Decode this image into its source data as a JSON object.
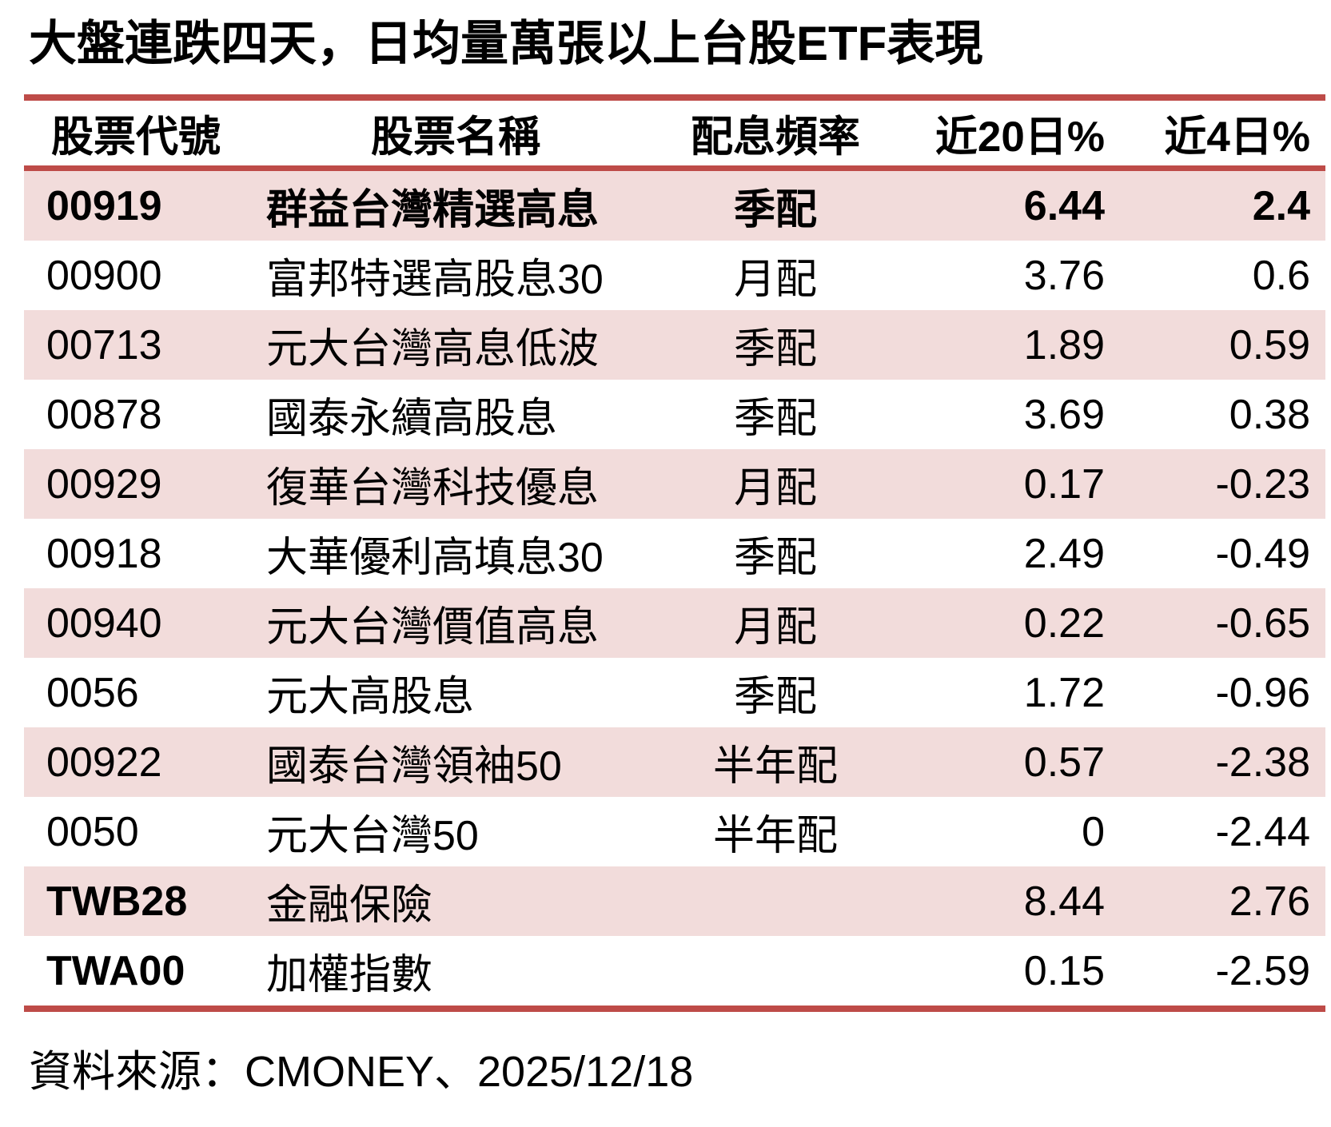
{
  "title": "大盤連跌四天，日均量萬張以上台股ETF表現",
  "accent_colors": {
    "rule_red": "#BE4B48",
    "zebra_pink": "#F2DCDB",
    "text": "#000000",
    "background": "#FFFFFF"
  },
  "chart_data": {
    "type": "table",
    "title": "大盤連跌四天，日均量萬張以上台股ETF表現",
    "columns": [
      "股票代號",
      "股票名稱",
      "配息頻率",
      "近20日%",
      "近4日%"
    ],
    "rows": [
      {
        "code": "00919",
        "name": "群益台灣精選高息",
        "freq": "季配",
        "pct20": "6.44",
        "pct4": "2.4",
        "emphasis": "row"
      },
      {
        "code": "00900",
        "name": "富邦特選高股息30",
        "freq": "月配",
        "pct20": "3.76",
        "pct4": "0.6",
        "emphasis": "none"
      },
      {
        "code": "00713",
        "name": "元大台灣高息低波",
        "freq": "季配",
        "pct20": "1.89",
        "pct4": "0.59",
        "emphasis": "none"
      },
      {
        "code": "00878",
        "name": "國泰永續高股息",
        "freq": "季配",
        "pct20": "3.69",
        "pct4": "0.38",
        "emphasis": "none"
      },
      {
        "code": "00929",
        "name": "復華台灣科技優息",
        "freq": "月配",
        "pct20": "0.17",
        "pct4": "-0.23",
        "emphasis": "none"
      },
      {
        "code": "00918",
        "name": "大華優利高填息30",
        "freq": "季配",
        "pct20": "2.49",
        "pct4": "-0.49",
        "emphasis": "none"
      },
      {
        "code": "00940",
        "name": "元大台灣價值高息",
        "freq": "月配",
        "pct20": "0.22",
        "pct4": "-0.65",
        "emphasis": "none"
      },
      {
        "code": "0056",
        "name": "元大高股息",
        "freq": "季配",
        "pct20": "1.72",
        "pct4": "-0.96",
        "emphasis": "none"
      },
      {
        "code": "00922",
        "name": "國泰台灣領袖50",
        "freq": "半年配",
        "pct20": "0.57",
        "pct4": "-2.38",
        "emphasis": "none"
      },
      {
        "code": "0050",
        "name": "元大台灣50",
        "freq": "半年配",
        "pct20": "0",
        "pct4": "-2.44",
        "emphasis": "none"
      },
      {
        "code": "TWB28",
        "name": "金融保險",
        "freq": "",
        "pct20": "8.44",
        "pct4": "2.76",
        "emphasis": "code"
      },
      {
        "code": "TWA00",
        "name": "加權指數",
        "freq": "",
        "pct20": "0.15",
        "pct4": "-2.59",
        "emphasis": "code"
      }
    ]
  },
  "footer": {
    "source": "資料來源：CMONEY、2025/12/18"
  }
}
